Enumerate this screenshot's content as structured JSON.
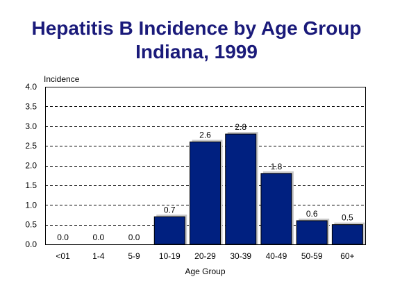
{
  "title_lines": [
    "Hepatitis B Incidence by Age Group",
    "Indiana, 1999"
  ],
  "colors": {
    "title": "#1a1a7a",
    "bar_fill": "#002080",
    "bar_shadow": "#c8c8c8",
    "grid": "#000000"
  },
  "chart_data": {
    "type": "bar",
    "title": "Hepatitis B Incidence by Age Group Indiana, 1999",
    "xlabel": "Age Group",
    "ylabel": "Incidence",
    "ylim": [
      0,
      4
    ],
    "yticks": [
      "0.0",
      "0.5",
      "1.0",
      "1.5",
      "2.0",
      "2.5",
      "3.0",
      "3.5",
      "4.0"
    ],
    "grid": true,
    "categories": [
      "<01",
      "1-4",
      "5-9",
      "10-19",
      "20-29",
      "30-39",
      "40-49",
      "50-59",
      "60+"
    ],
    "values": [
      0.0,
      0.0,
      0.0,
      0.7,
      2.6,
      2.8,
      1.8,
      0.6,
      0.5
    ],
    "data_labels": [
      "0.0",
      "0.0",
      "0.0",
      "0.7",
      "2.6",
      "2.8",
      "1.8",
      "0.6",
      "0.5"
    ]
  }
}
